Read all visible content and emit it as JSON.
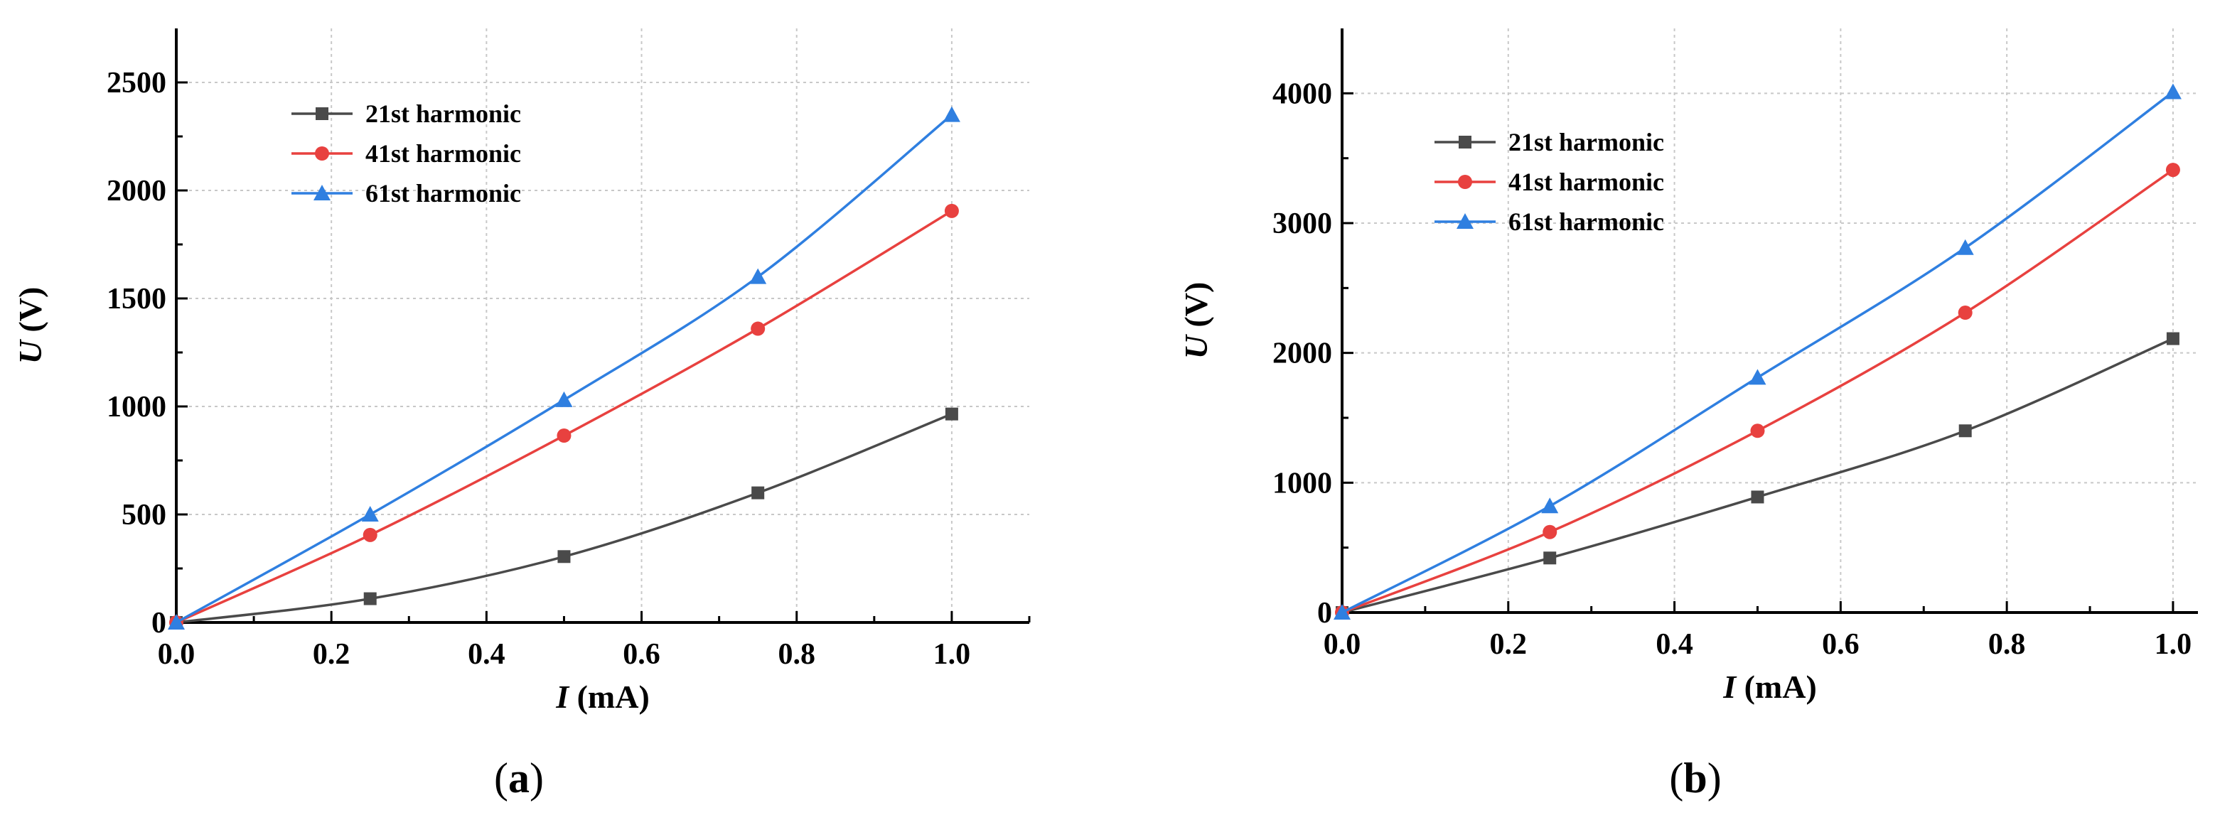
{
  "chart_data": [
    {
      "type": "line",
      "id": "a",
      "panel_label": "a",
      "xlabel_var": "I",
      "xlabel_unit": " (mA)",
      "ylabel_var": "U",
      "ylabel_unit": " (V)",
      "xlim": [
        0,
        1.1
      ],
      "ylim": [
        0,
        2750
      ],
      "xticks": [
        0.0,
        0.2,
        0.4,
        0.6,
        0.8,
        1.0
      ],
      "xtick_labels": [
        "0.0",
        "0.2",
        "0.4",
        "0.6",
        "0.8",
        "1.0"
      ],
      "yticks": [
        0,
        500,
        1000,
        1500,
        2000,
        2500
      ],
      "ytick_labels": [
        "0",
        "500",
        "1000",
        "1500",
        "2000",
        "2500"
      ],
      "grid": true,
      "legend_position": "top-left",
      "series": [
        {
          "name": "21st harmonic",
          "marker": "square",
          "color": "#4a4a4a",
          "x": [
            0,
            0.25,
            0.5,
            0.75,
            1.0
          ],
          "y": [
            0,
            110,
            305,
            600,
            965
          ]
        },
        {
          "name": "41st harmonic",
          "marker": "circle",
          "color": "#e8413f",
          "x": [
            0,
            0.25,
            0.5,
            0.75,
            1.0
          ],
          "y": [
            0,
            405,
            865,
            1360,
            1905
          ]
        },
        {
          "name": "61st harmonic",
          "marker": "triangle",
          "color": "#2f7fe0",
          "x": [
            0,
            0.25,
            0.5,
            0.75,
            1.0
          ],
          "y": [
            0,
            500,
            1030,
            1600,
            2350
          ]
        }
      ]
    },
    {
      "type": "line",
      "id": "b",
      "panel_label": "b",
      "xlabel_var": "I",
      "xlabel_unit": " (mA)",
      "ylabel_var": "U",
      "ylabel_unit": " (V)",
      "xlim": [
        0,
        1.03
      ],
      "ylim": [
        0,
        4500
      ],
      "xticks": [
        0.0,
        0.2,
        0.4,
        0.6,
        0.8,
        1.0
      ],
      "xtick_labels": [
        "0.0",
        "0.2",
        "0.4",
        "0.6",
        "0.8",
        "1.0"
      ],
      "yticks": [
        0,
        1000,
        2000,
        3000,
        4000
      ],
      "ytick_labels": [
        "0",
        "1000",
        "2000",
        "3000",
        "4000"
      ],
      "grid": true,
      "legend_position": "top-left",
      "series": [
        {
          "name": "21st harmonic",
          "marker": "square",
          "color": "#4a4a4a",
          "x": [
            0,
            0.25,
            0.5,
            0.75,
            1.0
          ],
          "y": [
            0,
            420,
            890,
            1400,
            2110
          ]
        },
        {
          "name": "41st harmonic",
          "marker": "circle",
          "color": "#e8413f",
          "x": [
            0,
            0.25,
            0.5,
            0.75,
            1.0
          ],
          "y": [
            0,
            620,
            1400,
            2310,
            3410
          ]
        },
        {
          "name": "61st harmonic",
          "marker": "triangle",
          "color": "#2f7fe0",
          "x": [
            0,
            0.25,
            0.5,
            0.75,
            1.0
          ],
          "y": [
            0,
            820,
            1810,
            2810,
            4010
          ]
        }
      ]
    }
  ]
}
